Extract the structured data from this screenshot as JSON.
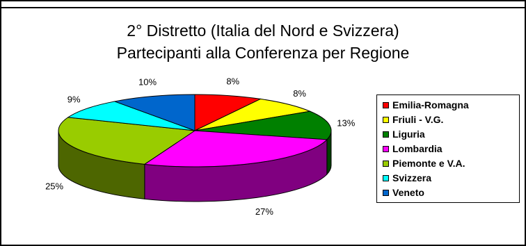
{
  "chart_data": {
    "type": "pie",
    "title": "2° Distretto (Italia del Nord e Svizzera)",
    "subtitle": "Partecipanti alla Conferenza per Regione",
    "legend_position": "right",
    "three_d": true,
    "slices": [
      {
        "name": "Emilia-Romagna",
        "value": 8,
        "label": "8%",
        "color": "#ff0000"
      },
      {
        "name": "Friuli - V.G.",
        "value": 8,
        "label": "8%",
        "color": "#ffff00"
      },
      {
        "name": "Liguria",
        "value": 13,
        "label": "13%",
        "color": "#008000"
      },
      {
        "name": "Lombardia",
        "value": 27,
        "label": "27%",
        "color": "#ff00ff"
      },
      {
        "name": "Piemonte e V.A.",
        "value": 25,
        "label": "25%",
        "color": "#99cc00"
      },
      {
        "name": "Svizzera",
        "value": 9,
        "label": "9%",
        "color": "#00ffff"
      },
      {
        "name": "Veneto",
        "value": 10,
        "label": "10%",
        "color": "#0066cc"
      }
    ]
  }
}
